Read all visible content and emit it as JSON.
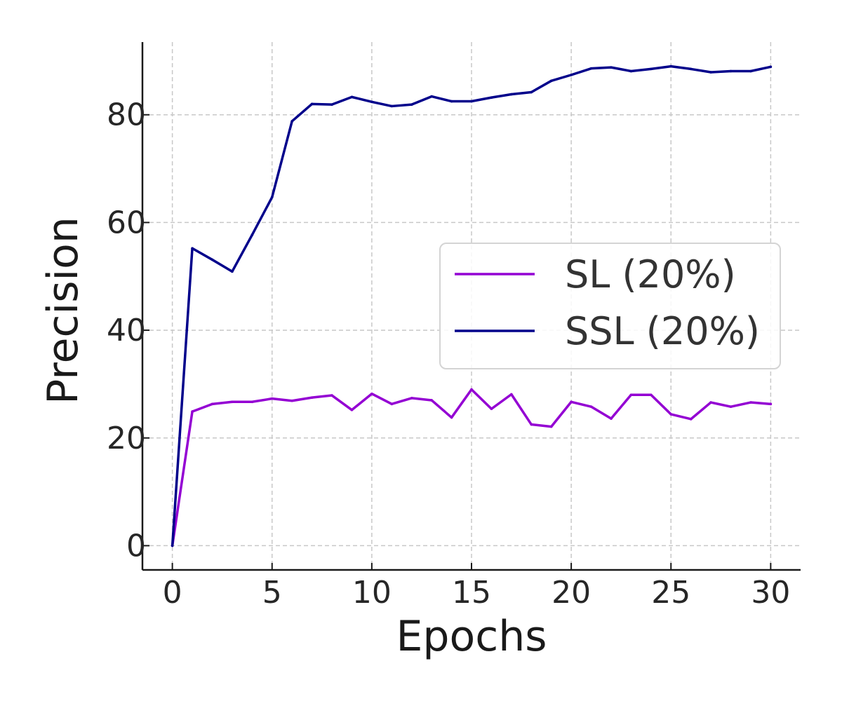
{
  "chart_data": {
    "type": "line",
    "xlabel": "Epochs",
    "ylabel": "Precision",
    "xlim": [
      -1.5,
      31.5
    ],
    "ylim": [
      -4.5,
      93.5
    ],
    "xticks": [
      0,
      5,
      10,
      15,
      20,
      25,
      30
    ],
    "yticks": [
      0,
      20,
      40,
      60,
      80
    ],
    "grid": true,
    "grid_style": "dashed",
    "legend_position": "center-right",
    "x": [
      0,
      1,
      2,
      3,
      4,
      5,
      6,
      7,
      8,
      9,
      10,
      11,
      12,
      13,
      14,
      15,
      16,
      17,
      18,
      19,
      20,
      21,
      22,
      23,
      24,
      25,
      26,
      27,
      28,
      29,
      30
    ],
    "series": [
      {
        "name": "SL (20%)",
        "color": "#9400d3",
        "values": [
          0,
          24.9,
          26.3,
          26.7,
          26.7,
          27.3,
          26.9,
          27.5,
          27.9,
          25.2,
          28.2,
          26.3,
          27.4,
          27.0,
          23.8,
          29.0,
          25.4,
          28.1,
          22.5,
          22.1,
          26.7,
          25.8,
          23.6,
          28.0,
          28.0,
          24.4,
          23.5,
          26.6,
          25.8,
          26.6,
          26.3
        ]
      },
      {
        "name": "SSL (20%)",
        "color": "#00008b",
        "values": [
          0,
          55.2,
          53.1,
          50.9,
          57.7,
          64.7,
          78.8,
          82.0,
          81.9,
          83.3,
          82.4,
          81.6,
          81.9,
          83.4,
          82.5,
          82.5,
          83.2,
          83.8,
          84.2,
          86.3,
          87.4,
          88.6,
          88.8,
          88.1,
          88.5,
          89.0,
          88.5,
          87.9,
          88.1,
          88.1,
          88.9
        ]
      }
    ]
  }
}
